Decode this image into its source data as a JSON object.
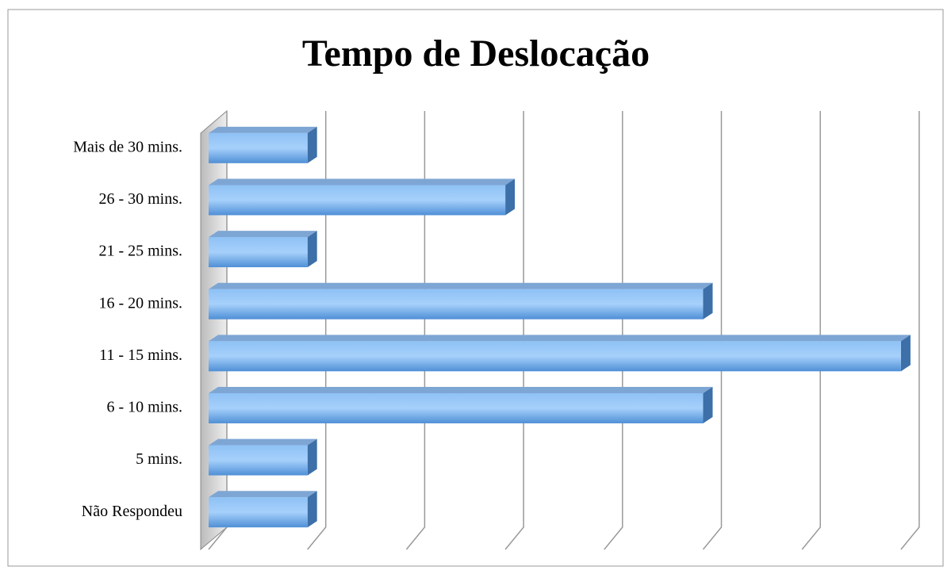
{
  "chart_data": {
    "type": "bar",
    "orientation": "horizontal",
    "title": "Tempo de Deslocação",
    "categories": [
      "Não Respondeu",
      "5 mins.",
      "6 - 10 mins.",
      "11 - 15 mins.",
      "16 - 20 mins.",
      "21 - 25 mins.",
      "26 - 30 mins.",
      "Mais de 30 mins."
    ],
    "values": [
      1,
      1,
      5,
      7,
      5,
      1,
      3,
      1
    ],
    "color": "#5b9bd5",
    "xlim": [
      0,
      7
    ],
    "xticks": [
      0,
      1,
      2,
      3,
      4,
      5,
      6,
      7
    ],
    "grid": true
  }
}
